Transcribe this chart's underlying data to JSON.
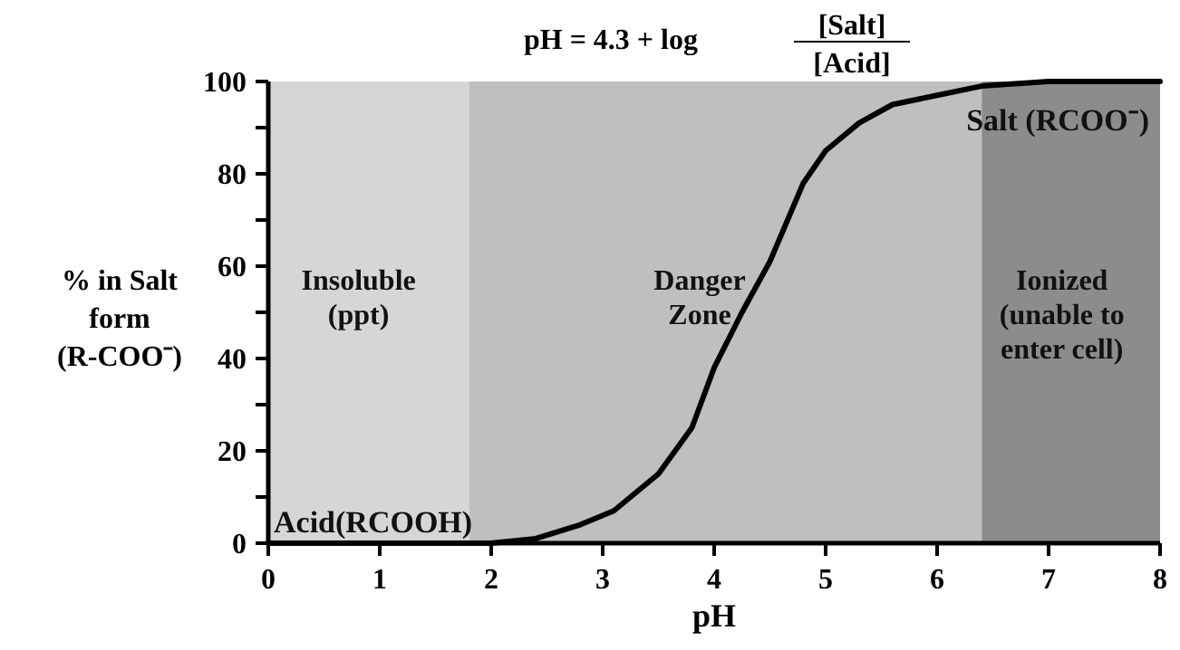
{
  "chart_data": {
    "type": "line",
    "title": "pH = 4.3 + log",
    "xlabel": "pH",
    "ylabel": "% in Salt form (R-COO⁻)",
    "x": [
      0,
      1,
      2,
      2.4,
      2.8,
      3.1,
      3.5,
      3.8,
      4.0,
      4.25,
      4.5,
      4.8,
      5.0,
      5.3,
      5.6,
      6.0,
      6.4,
      7,
      8
    ],
    "series": [
      {
        "color": "#000000",
        "values": [
          0,
          0,
          0,
          1,
          4,
          7,
          15,
          25,
          38,
          50,
          61,
          78,
          85,
          91,
          95,
          97,
          99,
          100,
          100
        ]
      }
    ],
    "xlim": [
      0,
      8
    ],
    "xticks": [
      0,
      1,
      2,
      3,
      4,
      5,
      6,
      7,
      8
    ],
    "ylim": [
      0,
      100
    ],
    "yticks": [
      0,
      {
        "value": 10,
        "label": null
      },
      20,
      {
        "value": 30,
        "label": null
      },
      40,
      {
        "value": 50,
        "label": null
      },
      60,
      {
        "value": 70,
        "label": null
      },
      80,
      {
        "value": 90,
        "label": null
      },
      100
    ],
    "bands": [
      {
        "axis": "x",
        "from": 0,
        "to": 1.8,
        "label": "Insoluble\n(ppt)",
        "color": "#d6d6d6"
      },
      {
        "axis": "x",
        "from": 1.8,
        "to": 6.4,
        "label": "Danger\nZone",
        "color": "#bfbfbf"
      },
      {
        "axis": "x",
        "from": 6.4,
        "to": 8,
        "label": "Ionized\n(unable to\nenter cell)",
        "color": "#8c8c8c"
      }
    ],
    "annotations": [
      "[Salt]",
      "[Acid]",
      "Salt (RCOO⁻)",
      "Acid(RCOOH)"
    ],
    "grid": false,
    "marker": "none",
    "line_style": "solid"
  }
}
